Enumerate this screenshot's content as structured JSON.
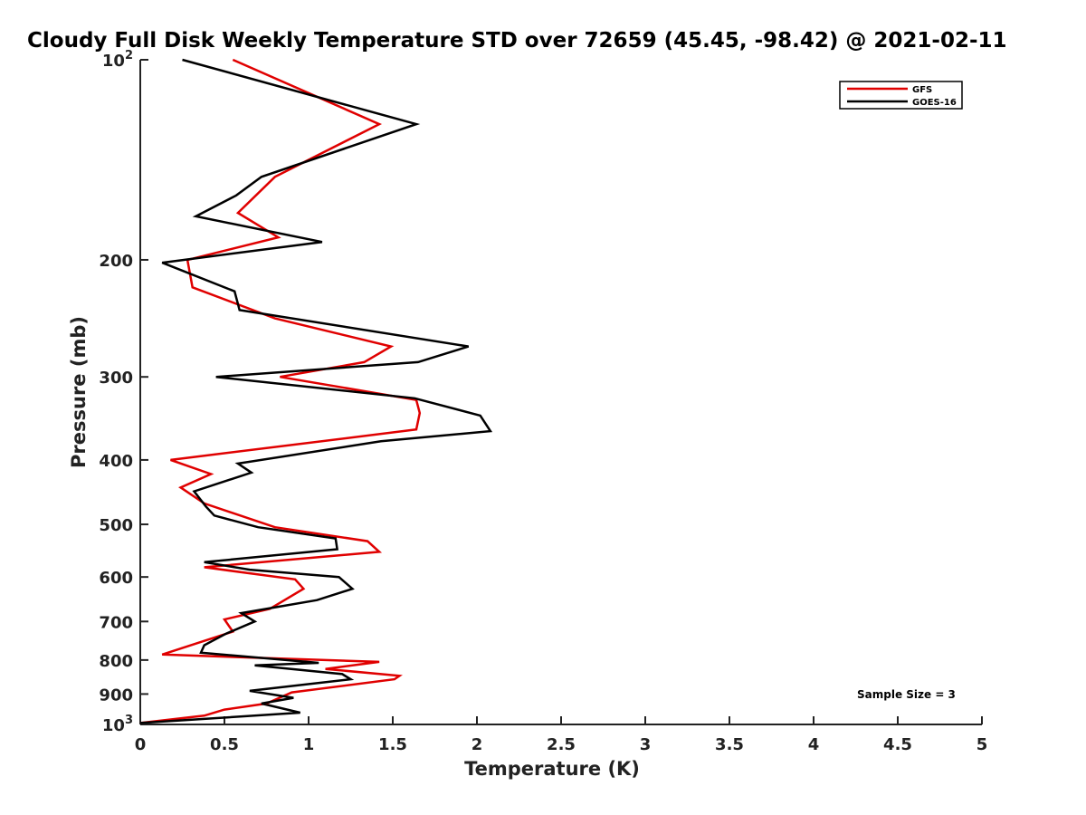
{
  "chart_data": {
    "type": "line",
    "title": "Cloudy Full Disk Weekly Temperature STD over 72659 (45.45, -98.42) @ 2021-02-11",
    "xlabel": "Temperature (K)",
    "ylabel": "Pressure (mb)",
    "xlim": [
      0,
      5
    ],
    "ylim": [
      100,
      1000
    ],
    "y_scale": "log",
    "y_reversed": true,
    "grid": false,
    "legend_position": "top-right",
    "x_ticks": [
      {
        "value": 0,
        "label": "0"
      },
      {
        "value": 0.5,
        "label": "0.5"
      },
      {
        "value": 1,
        "label": "1"
      },
      {
        "value": 1.5,
        "label": "1.5"
      },
      {
        "value": 2,
        "label": "2"
      },
      {
        "value": 2.5,
        "label": "2.5"
      },
      {
        "value": 3,
        "label": "3"
      },
      {
        "value": 3.5,
        "label": "3.5"
      },
      {
        "value": 4,
        "label": "4"
      },
      {
        "value": 4.5,
        "label": "4.5"
      },
      {
        "value": 5,
        "label": "5"
      }
    ],
    "y_ticks": [
      {
        "value": 100,
        "base": "10",
        "exp": "2"
      },
      {
        "value": 200,
        "label": "200"
      },
      {
        "value": 300,
        "label": "300"
      },
      {
        "value": 400,
        "label": "400"
      },
      {
        "value": 500,
        "label": "500"
      },
      {
        "value": 600,
        "label": "600"
      },
      {
        "value": 700,
        "label": "700"
      },
      {
        "value": 800,
        "label": "800"
      },
      {
        "value": 900,
        "label": "900"
      },
      {
        "value": 1000,
        "base": "10",
        "exp": "3"
      }
    ],
    "annotation": "Sample Size = 3",
    "series": [
      {
        "name": "GFS",
        "color": "#e00000",
        "points": [
          {
            "x": 0.55,
            "y": 100
          },
          {
            "x": 1.42,
            "y": 125
          },
          {
            "x": 0.8,
            "y": 150
          },
          {
            "x": 0.58,
            "y": 170
          },
          {
            "x": 0.82,
            "y": 185
          },
          {
            "x": 0.28,
            "y": 200
          },
          {
            "x": 0.31,
            "y": 220
          },
          {
            "x": 0.8,
            "y": 245
          },
          {
            "x": 1.49,
            "y": 270
          },
          {
            "x": 1.33,
            "y": 285
          },
          {
            "x": 0.83,
            "y": 300
          },
          {
            "x": 1.64,
            "y": 325
          },
          {
            "x": 1.66,
            "y": 340
          },
          {
            "x": 1.64,
            "y": 360
          },
          {
            "x": 0.18,
            "y": 400
          },
          {
            "x": 0.42,
            "y": 420
          },
          {
            "x": 0.24,
            "y": 440
          },
          {
            "x": 0.38,
            "y": 465
          },
          {
            "x": 0.8,
            "y": 505
          },
          {
            "x": 1.35,
            "y": 530
          },
          {
            "x": 1.42,
            "y": 550
          },
          {
            "x": 0.38,
            "y": 580
          },
          {
            "x": 0.92,
            "y": 605
          },
          {
            "x": 0.97,
            "y": 625
          },
          {
            "x": 0.77,
            "y": 670
          },
          {
            "x": 0.5,
            "y": 695
          },
          {
            "x": 0.55,
            "y": 725
          },
          {
            "x": 0.13,
            "y": 785
          },
          {
            "x": 1.42,
            "y": 805
          },
          {
            "x": 1.1,
            "y": 825
          },
          {
            "x": 1.54,
            "y": 845
          },
          {
            "x": 1.51,
            "y": 855
          },
          {
            "x": 0.9,
            "y": 895
          },
          {
            "x": 0.75,
            "y": 930
          },
          {
            "x": 0.5,
            "y": 950
          },
          {
            "x": 0.38,
            "y": 970
          },
          {
            "x": 0.0,
            "y": 995
          }
        ]
      },
      {
        "name": "GOES-16",
        "color": "#000000",
        "points": [
          {
            "x": 0.25,
            "y": 100
          },
          {
            "x": 1.64,
            "y": 125
          },
          {
            "x": 0.72,
            "y": 150
          },
          {
            "x": 0.57,
            "y": 160
          },
          {
            "x": 0.33,
            "y": 172
          },
          {
            "x": 1.08,
            "y": 188
          },
          {
            "x": 0.13,
            "y": 202
          },
          {
            "x": 0.56,
            "y": 223
          },
          {
            "x": 0.59,
            "y": 238
          },
          {
            "x": 1.95,
            "y": 270
          },
          {
            "x": 1.65,
            "y": 285
          },
          {
            "x": 0.45,
            "y": 300
          },
          {
            "x": 1.63,
            "y": 323
          },
          {
            "x": 2.02,
            "y": 343
          },
          {
            "x": 2.08,
            "y": 362
          },
          {
            "x": 1.43,
            "y": 375
          },
          {
            "x": 0.58,
            "y": 405
          },
          {
            "x": 0.66,
            "y": 418
          },
          {
            "x": 0.32,
            "y": 446
          },
          {
            "x": 0.39,
            "y": 470
          },
          {
            "x": 0.44,
            "y": 485
          },
          {
            "x": 0.7,
            "y": 505
          },
          {
            "x": 1.16,
            "y": 525
          },
          {
            "x": 1.17,
            "y": 545
          },
          {
            "x": 0.38,
            "y": 570
          },
          {
            "x": 0.65,
            "y": 585
          },
          {
            "x": 1.18,
            "y": 600
          },
          {
            "x": 1.26,
            "y": 625
          },
          {
            "x": 1.05,
            "y": 650
          },
          {
            "x": 0.6,
            "y": 680
          },
          {
            "x": 0.68,
            "y": 700
          },
          {
            "x": 0.51,
            "y": 730
          },
          {
            "x": 0.38,
            "y": 760
          },
          {
            "x": 0.36,
            "y": 780
          },
          {
            "x": 1.06,
            "y": 808
          },
          {
            "x": 0.68,
            "y": 815
          },
          {
            "x": 1.2,
            "y": 840
          },
          {
            "x": 1.25,
            "y": 855
          },
          {
            "x": 0.65,
            "y": 890
          },
          {
            "x": 0.91,
            "y": 912
          },
          {
            "x": 0.72,
            "y": 930
          },
          {
            "x": 0.95,
            "y": 960
          },
          {
            "x": 0.0,
            "y": 995
          }
        ]
      }
    ]
  }
}
